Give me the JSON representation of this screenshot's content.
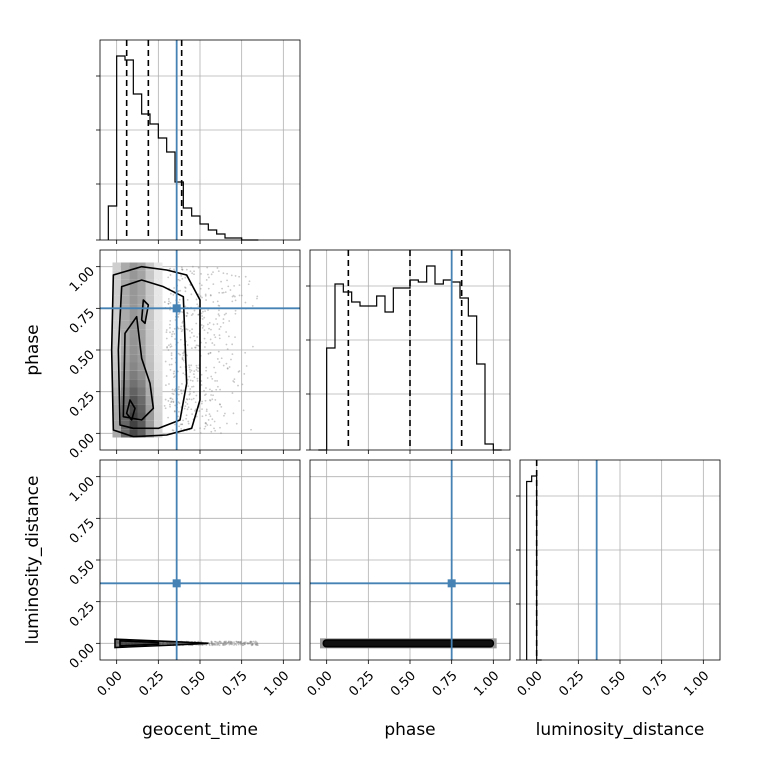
{
  "chart_data": {
    "type": "corner",
    "parameters": [
      "geocent_time",
      "phase",
      "luminosity_distance"
    ],
    "axis_labels": {
      "x": [
        "geocent_time",
        "phase",
        "luminosity_distance"
      ],
      "y": [
        "phase",
        "luminosity_distance"
      ]
    },
    "xlim": [
      -0.1,
      1.1
    ],
    "ylim": [
      -0.1,
      1.1
    ],
    "ticks": [
      0.0,
      0.25,
      0.5,
      0.75,
      1.0
    ],
    "tick_labels": [
      "0.00",
      "0.25",
      "0.50",
      "0.75",
      "1.00"
    ],
    "grid": true,
    "truths": {
      "geocent_time": 0.36,
      "phase": 0.75,
      "luminosity_distance": 0.36
    },
    "truth_color": "#4682b4",
    "quantiles": {
      "geocent_time": [
        0.06,
        0.19,
        0.39
      ],
      "phase": [
        0.13,
        0.5,
        0.81
      ],
      "luminosity_distance": [
        0.0
      ]
    },
    "histograms": {
      "geocent_time": {
        "bin_edges": [
          -0.05,
          0.0,
          0.05,
          0.1,
          0.15,
          0.2,
          0.25,
          0.3,
          0.35,
          0.4,
          0.45,
          0.5,
          0.55,
          0.6,
          0.65,
          0.7,
          0.75,
          0.8,
          0.85
        ],
        "counts": [
          0.17,
          0.92,
          0.9,
          0.73,
          0.63,
          0.58,
          0.51,
          0.44,
          0.29,
          0.16,
          0.12,
          0.08,
          0.05,
          0.03,
          0.01,
          0.01,
          0.0,
          0.0
        ]
      },
      "phase": {
        "bin_edges": [
          -0.05,
          0.0,
          0.05,
          0.1,
          0.15,
          0.2,
          0.25,
          0.3,
          0.35,
          0.4,
          0.45,
          0.5,
          0.55,
          0.6,
          0.65,
          0.7,
          0.75,
          0.8,
          0.85,
          0.9,
          0.95,
          1.0,
          1.05
        ],
        "counts": [
          0.0,
          0.51,
          0.83,
          0.79,
          0.74,
          0.72,
          0.72,
          0.77,
          0.69,
          0.81,
          0.81,
          0.85,
          0.84,
          0.92,
          0.83,
          0.85,
          0.84,
          0.76,
          0.67,
          0.43,
          0.03,
          0.0
        ]
      },
      "luminosity_distance": {
        "bin_edges": [
          -0.06,
          -0.03,
          0.0,
          0.03
        ],
        "counts": [
          0.97,
          1.0,
          0.0
        ]
      }
    }
  }
}
